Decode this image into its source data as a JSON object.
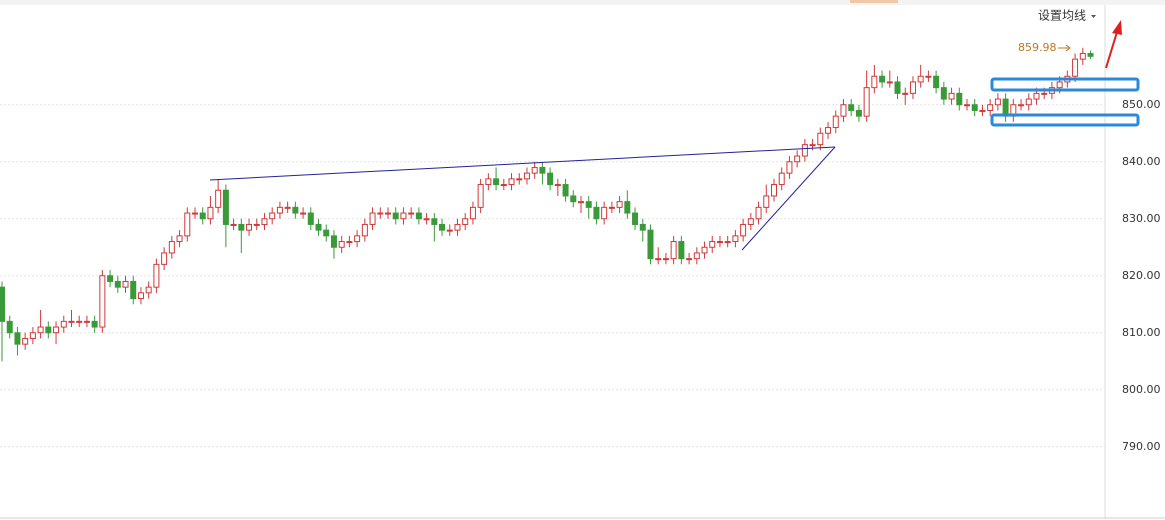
{
  "ma_button": "设置均线",
  "chart_data": {
    "type": "candlestick",
    "annotation": "859.98",
    "up_color": "#d0383a",
    "down_color": "#3a9a3a",
    "ylim": [
      777.5,
      867.5
    ],
    "yticks": [
      {
        "value": 790,
        "label": "790.00"
      },
      {
        "value": 800,
        "label": "800.00"
      },
      {
        "value": 810,
        "label": "810.00"
      },
      {
        "value": 820,
        "label": "820.00"
      },
      {
        "value": 830,
        "label": "830.00"
      },
      {
        "value": 840,
        "label": "840.00"
      },
      {
        "value": 850,
        "label": "850.00"
      }
    ],
    "grid": true,
    "open": [
      818,
      812,
      810,
      808,
      809,
      810,
      811,
      810,
      811,
      812,
      812,
      812,
      812,
      811,
      820,
      819,
      818,
      819,
      816,
      817,
      818,
      822,
      824,
      826,
      827,
      831,
      831,
      830,
      832,
      835,
      829,
      829,
      828,
      829,
      829,
      830,
      831,
      832,
      832,
      831,
      831,
      829,
      828,
      827,
      825,
      826,
      826,
      827,
      829,
      831,
      831,
      831,
      830,
      831,
      831,
      830,
      830,
      829,
      828,
      828,
      829,
      830,
      832,
      836,
      837,
      836,
      836,
      837,
      837,
      838,
      839,
      838,
      836,
      836,
      834,
      833,
      833,
      832,
      830,
      832,
      832,
      833,
      831,
      829,
      828,
      823,
      823,
      823,
      826,
      823,
      823,
      824,
      825,
      826,
      826,
      826,
      827,
      829,
      830,
      832,
      834,
      836,
      838,
      840,
      841,
      843,
      843,
      845,
      846,
      848,
      850,
      849,
      848,
      853,
      855,
      854,
      854,
      852,
      852,
      854,
      855,
      855,
      853,
      851,
      852,
      850,
      850,
      849,
      849,
      850,
      851,
      848,
      850,
      850,
      851,
      852,
      852,
      853,
      854,
      855,
      858,
      859
    ],
    "high": [
      819,
      813,
      811,
      810,
      811,
      814,
      812,
      812,
      813,
      814,
      813,
      813,
      813,
      821,
      821,
      820,
      820,
      820,
      818,
      819,
      823,
      825,
      827,
      828,
      832,
      832,
      832,
      834,
      837,
      836,
      830,
      830,
      830,
      830,
      831,
      832,
      833,
      833,
      833,
      832,
      832,
      830,
      829,
      828,
      827,
      827,
      828,
      830,
      832,
      832,
      832,
      832,
      832,
      832,
      832,
      831,
      831,
      830,
      829,
      830,
      831,
      833,
      837,
      838,
      839,
      837,
      838,
      838,
      839,
      840,
      840,
      839,
      837,
      837,
      835,
      834,
      834,
      833,
      833,
      833,
      834,
      835,
      832,
      830,
      829,
      825,
      824,
      827,
      827,
      824,
      825,
      826,
      827,
      827,
      827,
      828,
      830,
      831,
      833,
      836,
      837,
      839,
      841,
      842,
      844,
      844,
      846,
      847,
      849,
      851,
      851,
      850,
      856,
      857,
      856,
      856,
      855,
      853,
      855,
      857,
      856,
      856,
      854,
      853,
      853,
      851,
      851,
      850,
      851,
      852,
      852,
      851,
      851,
      852,
      853,
      853,
      854,
      855,
      856,
      859,
      859.98,
      859.5
    ],
    "low": [
      805,
      809,
      806,
      807,
      808,
      809,
      809,
      808,
      810,
      811,
      811,
      811,
      810,
      810,
      818,
      817,
      817,
      815,
      815,
      816,
      817,
      821,
      823,
      825,
      826,
      830,
      829,
      829,
      831,
      825,
      828,
      824,
      827,
      828,
      828,
      829,
      830,
      831,
      830,
      830,
      828,
      827,
      826,
      823,
      824,
      825,
      825,
      826,
      828,
      830,
      830,
      829,
      829,
      830,
      829,
      829,
      826,
      827,
      827,
      827,
      828,
      829,
      831,
      835,
      835,
      835,
      835,
      836,
      836,
      837,
      836,
      835,
      834,
      833,
      832,
      831,
      830,
      829,
      829,
      831,
      831,
      830,
      828,
      826,
      822,
      822,
      822,
      822,
      822,
      822,
      822,
      823,
      824,
      825,
      825,
      825,
      826,
      828,
      829,
      831,
      833,
      835,
      837,
      839,
      840,
      842,
      842,
      844,
      845,
      847,
      848,
      847,
      847,
      852,
      853,
      853,
      851,
      850,
      851,
      853,
      854,
      852,
      850,
      850,
      849,
      849,
      848,
      848,
      848,
      849,
      847,
      847,
      849,
      849,
      850,
      851,
      851,
      852,
      853,
      854,
      857,
      858
    ],
    "close": [
      812,
      810,
      808,
      809,
      810,
      811,
      810,
      811,
      812,
      812,
      812,
      812,
      811,
      820,
      819,
      818,
      819,
      816,
      817,
      818,
      822,
      824,
      826,
      827,
      831,
      831,
      830,
      832,
      835,
      829,
      829,
      828,
      829,
      829,
      830,
      831,
      832,
      832,
      831,
      831,
      829,
      828,
      827,
      825,
      826,
      826,
      827,
      829,
      831,
      831,
      831,
      830,
      831,
      831,
      830,
      830,
      829,
      828,
      828,
      829,
      830,
      832,
      836,
      837,
      836,
      836,
      837,
      837,
      838,
      839,
      838,
      836,
      836,
      834,
      833,
      833,
      832,
      830,
      832,
      832,
      833,
      831,
      829,
      828,
      823,
      823,
      823,
      826,
      823,
      823,
      824,
      825,
      826,
      826,
      826,
      827,
      829,
      830,
      832,
      834,
      836,
      838,
      840,
      841,
      843,
      843,
      845,
      846,
      848,
      850,
      849,
      848,
      853,
      855,
      854,
      854,
      852,
      852,
      854,
      855,
      855,
      853,
      851,
      852,
      850,
      850,
      849,
      849,
      850,
      851,
      848,
      850,
      850,
      851,
      852,
      852,
      853,
      854,
      855,
      858,
      859,
      858.5
    ]
  }
}
